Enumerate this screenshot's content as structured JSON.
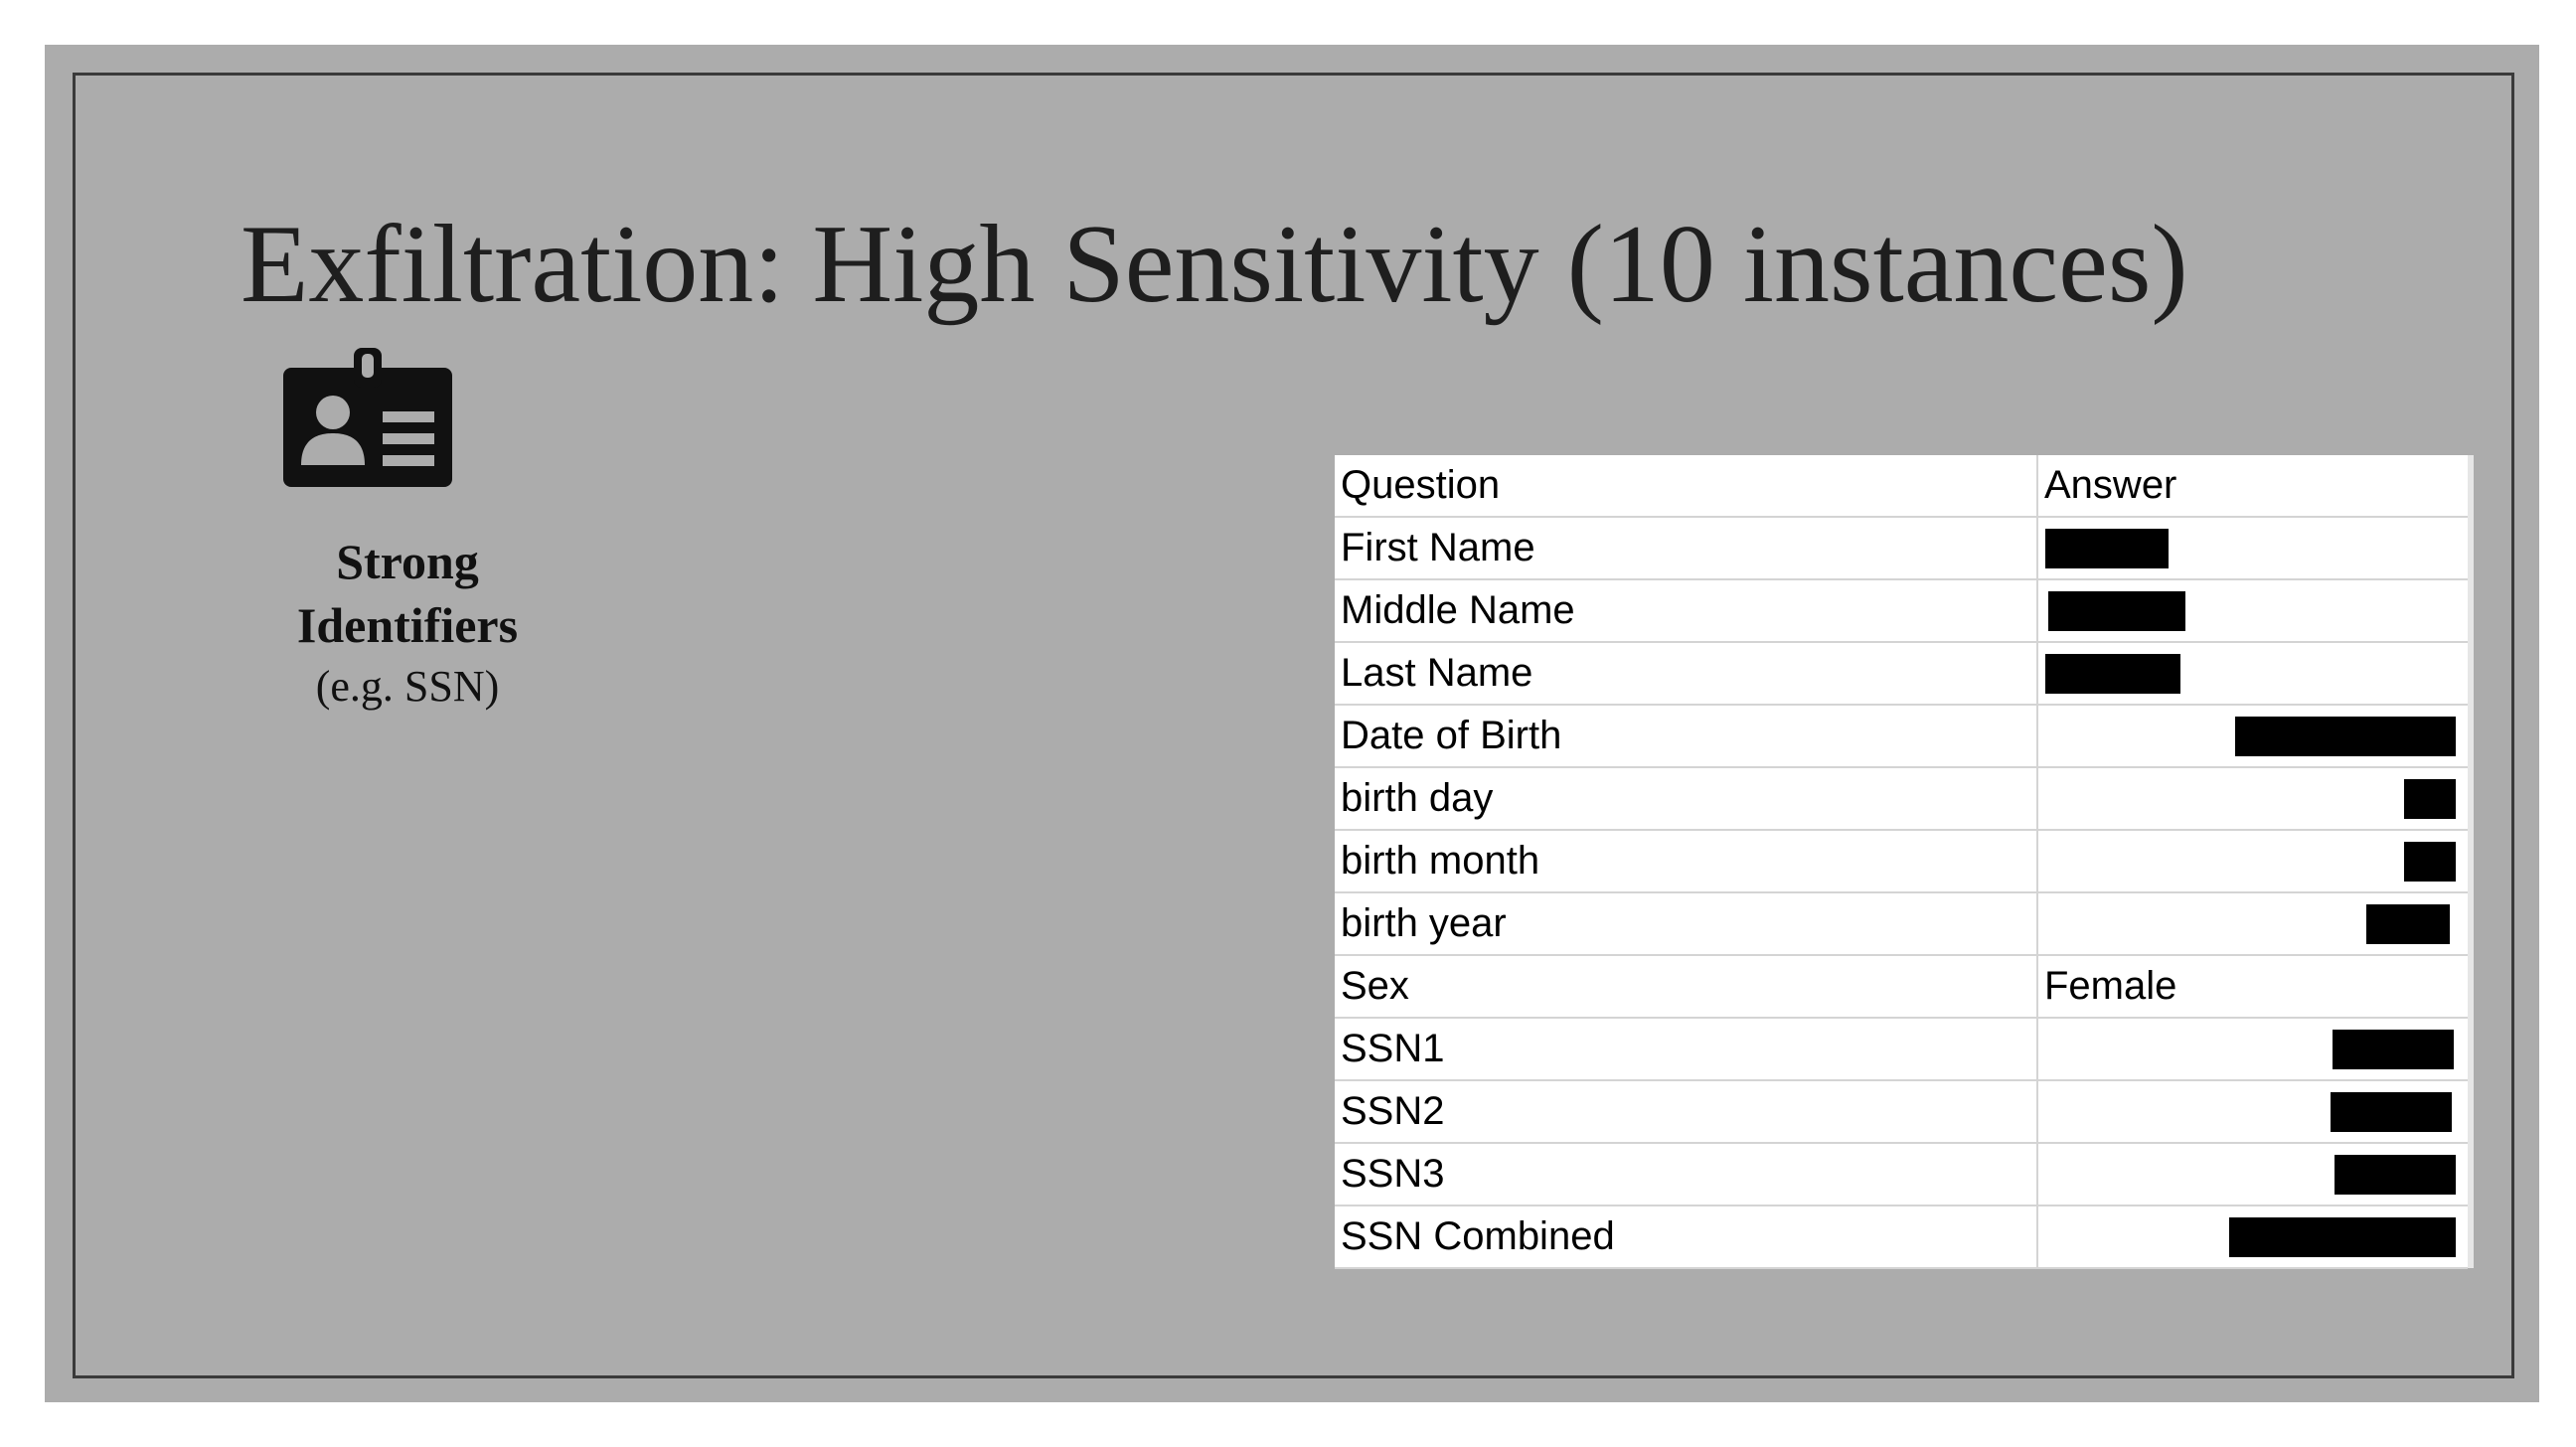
{
  "slide": {
    "title": "Exfiltration: High Sensitivity (10 instances)",
    "icon": "id-badge-icon",
    "caption_strong_line1": "Strong",
    "caption_strong_line2": "Identifiers",
    "caption_example": "(e.g. SSN)"
  },
  "table": {
    "headers": [
      "Question",
      "Answer"
    ],
    "rows": [
      {
        "question": "First Name",
        "answer": "",
        "redacted": true
      },
      {
        "question": "Middle Name",
        "answer": "",
        "redacted": true
      },
      {
        "question": "Last Name",
        "answer": "",
        "redacted": true
      },
      {
        "question": "Date of Birth",
        "answer": "",
        "redacted": true
      },
      {
        "question": "birth day",
        "answer": "",
        "redacted": true
      },
      {
        "question": "birth month",
        "answer": "",
        "redacted": true
      },
      {
        "question": "birth year",
        "answer": "",
        "redacted": true
      },
      {
        "question": "Sex",
        "answer": "Female",
        "redacted": false
      },
      {
        "question": "SSN1",
        "answer": "",
        "redacted": true
      },
      {
        "question": "SSN2",
        "answer": "",
        "redacted": true
      },
      {
        "question": "SSN3",
        "answer": "",
        "redacted": true
      },
      {
        "question": "SSN Combined",
        "answer": "",
        "redacted": true
      }
    ]
  },
  "colors": {
    "slide_background": "#acacac",
    "title_text": "#1e1e1e",
    "redaction": "#000000"
  }
}
